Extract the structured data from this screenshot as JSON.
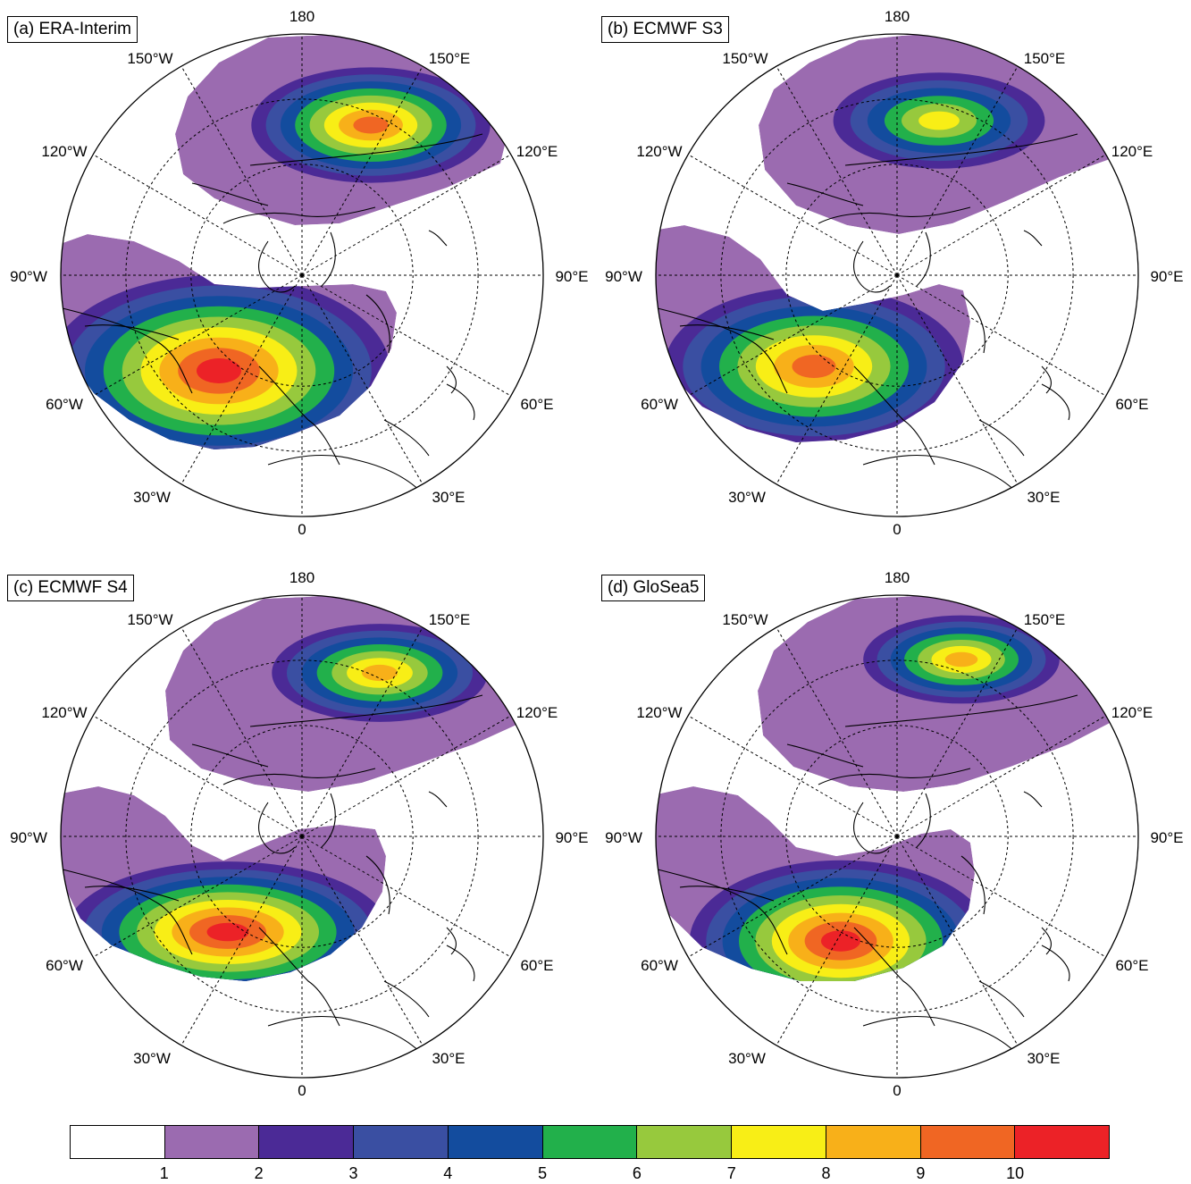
{
  "panels": [
    {
      "title": "(a) ERA-Interim",
      "variant": "era"
    },
    {
      "title": "(b) ECMWF S3",
      "variant": "s3"
    },
    {
      "title": "(c) ECMWF S4",
      "variant": "s4"
    },
    {
      "title": "(d) GloSea5",
      "variant": "glosea"
    }
  ],
  "map_labels": {
    "top": "180",
    "bottom": "0",
    "left": "90°W",
    "right": "90°E",
    "upper_left_1": "150°W",
    "upper_left_2": "120°W",
    "upper_right_1": "150°E",
    "upper_right_2": "120°E",
    "lower_left_1": "60°W",
    "lower_left_2": "30°W",
    "lower_right_1": "60°E",
    "lower_right_2": "30°E"
  },
  "colorbar": {
    "colors": [
      "#ffffff",
      "#9b6bb0",
      "#4b2a96",
      "#3a4fa2",
      "#134c9e",
      "#22b04b",
      "#97c93d",
      "#f8ee16",
      "#f8b019",
      "#f06623",
      "#ec2227"
    ],
    "tick_labels": [
      "1",
      "2",
      "3",
      "4",
      "5",
      "6",
      "7",
      "8",
      "9",
      "10"
    ]
  }
}
